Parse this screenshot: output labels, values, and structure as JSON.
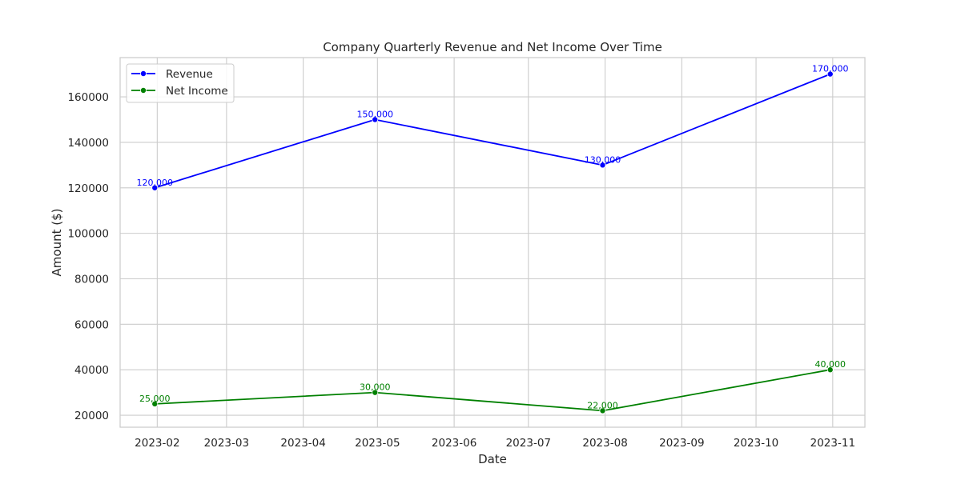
{
  "chart_data": {
    "type": "line",
    "title": "Company Quarterly Revenue and Net Income Over Time",
    "xlabel": "Date",
    "ylabel": "Amount ($)",
    "x": [
      "2023-01-31",
      "2023-04-30",
      "2023-07-31",
      "2023-10-31"
    ],
    "x_ticks": [
      "2023-02",
      "2023-03",
      "2023-04",
      "2023-05",
      "2023-06",
      "2023-07",
      "2023-08",
      "2023-09",
      "2023-10",
      "2023-11"
    ],
    "y_ticks": [
      20000,
      40000,
      60000,
      80000,
      100000,
      120000,
      140000,
      160000
    ],
    "xlim": [
      "2023-01-17",
      "2023-11-14"
    ],
    "ylim": [
      14750,
      177250
    ],
    "grid": true,
    "legend_position": "top-left",
    "series": [
      {
        "name": "Revenue",
        "color": "#0000ff",
        "values": [
          120000,
          150000,
          130000,
          170000
        ],
        "labels": [
          "120,000",
          "150,000",
          "130,000",
          "170,000"
        ]
      },
      {
        "name": "Net Income",
        "color": "#008000",
        "values": [
          25000,
          30000,
          22000,
          40000
        ],
        "labels": [
          "25,000",
          "30,000",
          "22,000",
          "40,000"
        ]
      }
    ]
  }
}
